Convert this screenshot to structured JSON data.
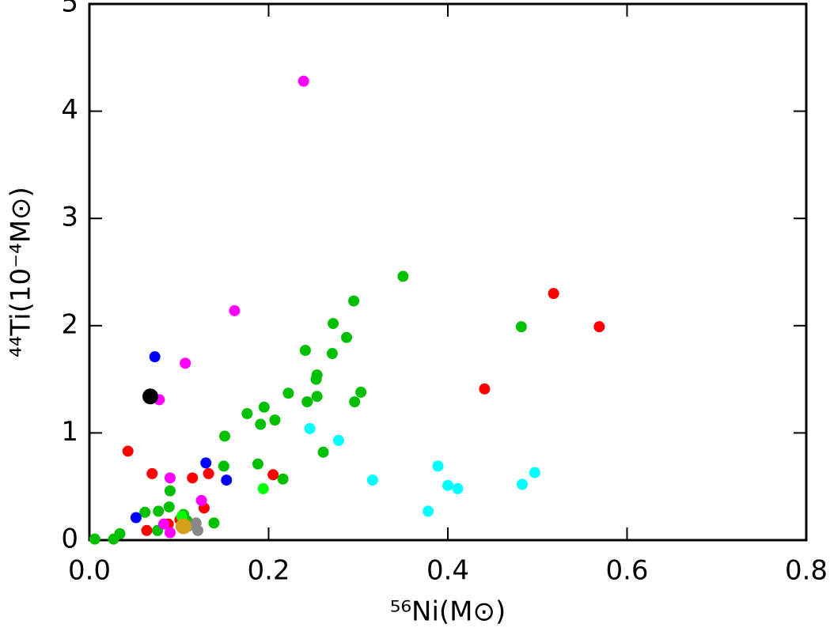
{
  "chart_data": {
    "type": "scatter",
    "x_label": "⁵⁶Ni(M⊙)",
    "y_label": "⁴⁴Ti(10⁻⁴M⊙)",
    "xlim": [
      0,
      0.8
    ],
    "ylim": [
      0,
      5
    ],
    "xticks": [
      {
        "value": 0,
        "label": "0.0"
      },
      0.2,
      0.4,
      0.6,
      0.8
    ],
    "yticks": [
      0,
      1,
      2,
      3,
      4,
      5
    ],
    "grid": false,
    "series": [
      {
        "color": "#00c000",
        "marker_size": 7,
        "x": [
          0.35,
          0.295,
          0.272,
          0.287,
          0.241,
          0.271,
          0.254,
          0.253,
          0.254,
          0.303,
          0.296,
          0.243,
          0.222,
          0.195,
          0.207,
          0.176,
          0.191,
          0.151,
          0.482,
          0.261,
          0.188,
          0.15,
          0.216,
          0.09,
          0.089,
          0.077,
          0.062,
          0.139,
          0.105,
          0.109,
          0.076,
          0.034,
          0.027,
          0.006
        ],
        "values": [
          2.46,
          2.23,
          2.02,
          1.89,
          1.77,
          1.74,
          1.54,
          1.5,
          1.34,
          1.38,
          1.29,
          1.29,
          1.37,
          1.24,
          1.12,
          1.18,
          1.08,
          0.97,
          1.99,
          0.82,
          0.71,
          0.69,
          0.57,
          0.46,
          0.31,
          0.27,
          0.26,
          0.16,
          0.24,
          0.18,
          0.09,
          0.06,
          0.01,
          0.01
        ]
      },
      {
        "color": "#ff0000",
        "marker_size": 7,
        "x": [
          0.441,
          0.569,
          0.518,
          0.043,
          0.07,
          0.115,
          0.133,
          0.205,
          0.128,
          0.064,
          0.101,
          0.088
        ],
        "values": [
          1.41,
          1.99,
          2.3,
          0.83,
          0.62,
          0.58,
          0.62,
          0.61,
          0.3,
          0.09,
          0.19,
          0.15
        ]
      },
      {
        "color": "#00ffff",
        "marker_size": 7,
        "x": [
          0.246,
          0.278,
          0.316,
          0.389,
          0.4,
          0.411,
          0.378,
          0.483,
          0.497
        ],
        "values": [
          1.04,
          0.93,
          0.56,
          0.69,
          0.51,
          0.48,
          0.27,
          0.52,
          0.63
        ]
      },
      {
        "color": "#ff00ff",
        "marker_size": 7,
        "x": [
          0.239,
          0.162,
          0.107,
          0.078,
          0.09,
          0.125,
          0.083,
          0.09
        ],
        "values": [
          4.28,
          2.14,
          1.65,
          1.31,
          0.58,
          0.37,
          0.15,
          0.07
        ]
      },
      {
        "color": "#0000ff",
        "marker_size": 7,
        "x": [
          0.073,
          0.13,
          0.153,
          0.052
        ],
        "values": [
          1.71,
          0.72,
          0.56,
          0.21
        ]
      },
      {
        "color": "#00ff00",
        "marker_size": 7,
        "x": [
          0.194,
          0.103
        ],
        "values": [
          0.48,
          0.22
        ]
      },
      {
        "color": "#888888",
        "marker_size": 7,
        "x": [
          0.119,
          0.121,
          0.11
        ],
        "values": [
          0.16,
          0.09,
          0.13
        ]
      },
      {
        "color": "#d4a017",
        "marker_size": 10,
        "x": [
          0.105
        ],
        "values": [
          0.13
        ]
      },
      {
        "color": "#000000",
        "marker_size": 10,
        "x": [
          0.068
        ],
        "values": [
          1.34
        ]
      }
    ]
  }
}
